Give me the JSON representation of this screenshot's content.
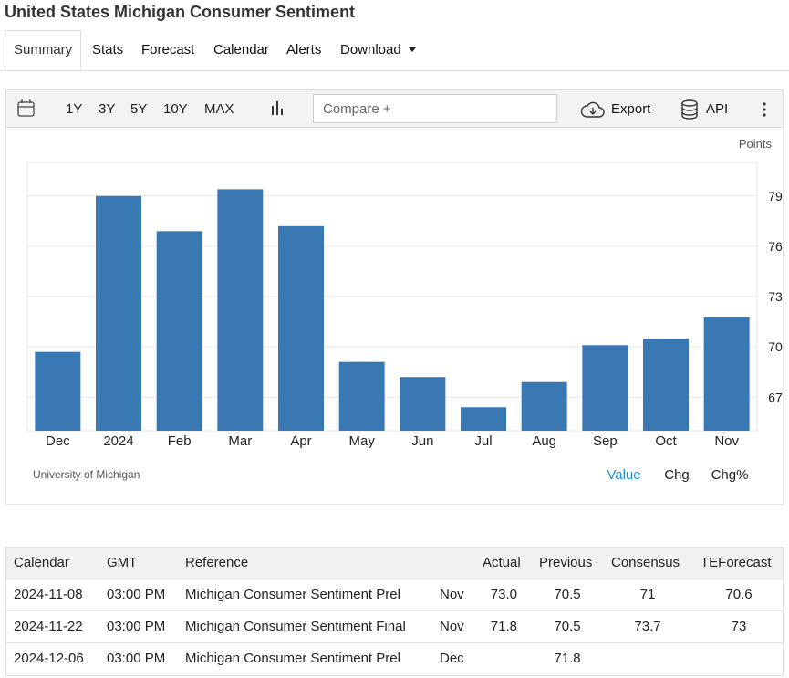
{
  "header": {
    "title": "United States Michigan Consumer Sentiment"
  },
  "tabs": [
    "Summary",
    "Stats",
    "Forecast",
    "Calendar",
    "Alerts",
    "Download"
  ],
  "toolbar": {
    "ranges": [
      "1Y",
      "3Y",
      "5Y",
      "10Y",
      "MAX"
    ],
    "compare": "Compare +",
    "export": "Export",
    "api": "API"
  },
  "chart_data": {
    "type": "bar",
    "y_label": "Points",
    "y_axis_side": "right",
    "categories": [
      "Dec",
      "2024",
      "Feb",
      "Mar",
      "Apr",
      "May",
      "Jun",
      "Jul",
      "Aug",
      "Sep",
      "Oct",
      "Nov"
    ],
    "values": [
      69.7,
      79.0,
      76.9,
      79.4,
      77.2,
      69.1,
      68.2,
      66.4,
      67.9,
      70.1,
      70.5,
      71.8
    ],
    "color": "#3a78b4",
    "ylim": [
      65,
      81
    ],
    "yticks": [
      67,
      70,
      73,
      76,
      79
    ],
    "grid": true,
    "source": "University of Michigan"
  },
  "views": [
    "Value",
    "Chg",
    "Chg%"
  ],
  "table": {
    "headers": {
      "date": "Calendar",
      "time": "GMT",
      "event": "Reference",
      "actual": "Actual",
      "previous": "Previous",
      "consensus": "Consensus",
      "teforecast": "TEForecast"
    },
    "rows": [
      {
        "date": "2024-11-08",
        "time": "03:00 PM",
        "event": "Michigan Consumer Sentiment Prel",
        "period": "Nov",
        "actual": "73.0",
        "previous": "70.5",
        "consensus": "71",
        "teforecast": "70.6"
      },
      {
        "date": "2024-11-22",
        "time": "03:00 PM",
        "event": "Michigan Consumer Sentiment Final",
        "period": "Nov",
        "actual": "71.8",
        "previous": "70.5",
        "consensus": "73.7",
        "teforecast": "73"
      },
      {
        "date": "2024-12-06",
        "time": "03:00 PM",
        "event": "Michigan Consumer Sentiment Prel",
        "period": "Dec",
        "previous": "71.8"
      }
    ]
  }
}
